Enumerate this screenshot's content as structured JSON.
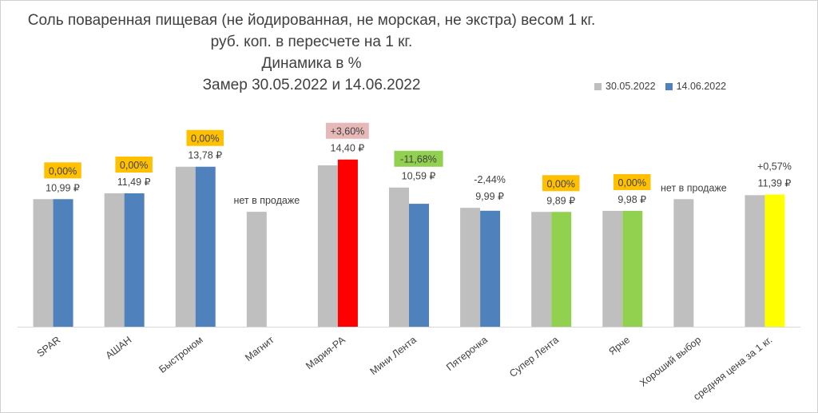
{
  "chart_data": {
    "type": "bar",
    "title_lines": [
      "Соль поваренная пищевая (не йодированная, не морская, не экстра) весом 1 кг.",
      "руб. коп. в пересчете на 1 кг.",
      "Динамика в %",
      "Замер 30.05.2022 и 14.06.2022"
    ],
    "xlabel": "",
    "ylabel": "",
    "ylim": [
      0,
      15
    ],
    "grid": false,
    "legend_position": "top-right",
    "categories": [
      "SPAR",
      "АШАН",
      "Быстроном",
      "Магнит",
      "Мария-РА",
      "Мини Лента",
      "Пятерочка",
      "Супер Лента",
      "Ярче",
      "Хороший выбор",
      "средняя цена за 1 кг."
    ],
    "series": [
      {
        "name": "30.05.2022",
        "color": "#bfbfbf",
        "values": [
          10.99,
          11.49,
          13.78,
          9.9,
          13.9,
          11.99,
          10.24,
          9.89,
          9.98,
          10.99,
          11.33
        ]
      },
      {
        "name": "14.06.2022",
        "color": "#4f81bd",
        "values": [
          10.99,
          11.49,
          13.78,
          null,
          14.4,
          10.59,
          9.99,
          9.89,
          9.98,
          null,
          11.39
        ],
        "bar_colors": [
          "#4f81bd",
          "#4f81bd",
          "#4f81bd",
          "#4f81bd",
          "#ff0000",
          "#4f81bd",
          "#4f81bd",
          "#92d050",
          "#92d050",
          "#4f81bd",
          "#ffff00"
        ]
      }
    ],
    "value_labels": [
      "10,99 ₽",
      "11,49 ₽",
      "13,78 ₽",
      "нет в продаже",
      "14,40 ₽",
      "10,59 ₽",
      "9,99 ₽",
      "9,89 ₽",
      "9,98 ₽",
      "нет в продаже",
      "11,39 ₽"
    ],
    "change_labels": [
      {
        "text": "0,00%",
        "bg": "#ffc000"
      },
      {
        "text": "0,00%",
        "bg": "#ffc000"
      },
      {
        "text": "0,00%",
        "bg": "#ffc000"
      },
      null,
      {
        "text": "+3,60%",
        "bg": "#e6b8b7"
      },
      {
        "text": "-11,68%",
        "bg": "#92d050"
      },
      {
        "text": "-2,44%",
        "bg": null
      },
      {
        "text": "0,00%",
        "bg": "#ffc000"
      },
      {
        "text": "0,00%",
        "bg": "#ffc000"
      },
      null,
      {
        "text": "+0,57%",
        "bg": null
      }
    ]
  }
}
